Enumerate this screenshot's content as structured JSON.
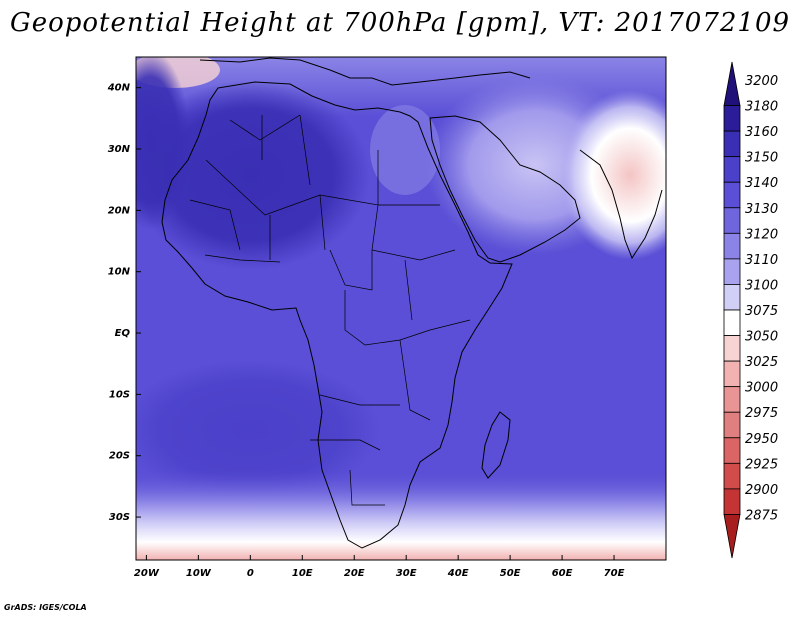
{
  "title": "Geopotential Height at 700hPa [gpm], VT: 2017072109",
  "credit": "GrADS: IGES/COLA",
  "map": {
    "region": "Africa, Arabian Peninsula and Southern Europe",
    "lon_range": [
      -22,
      80
    ],
    "lat_range": [
      -37,
      45
    ],
    "lat_ticks": [
      {
        "value": 40,
        "label": "40N"
      },
      {
        "value": 30,
        "label": "30N"
      },
      {
        "value": 20,
        "label": "20N"
      },
      {
        "value": 10,
        "label": "10N"
      },
      {
        "value": 0,
        "label": "EQ"
      },
      {
        "value": -10,
        "label": "10S"
      },
      {
        "value": -20,
        "label": "20S"
      },
      {
        "value": -30,
        "label": "30S"
      }
    ],
    "lon_ticks": [
      {
        "value": -20,
        "label": "20W"
      },
      {
        "value": -10,
        "label": "10W"
      },
      {
        "value": 0,
        "label": "0"
      },
      {
        "value": 10,
        "label": "10E"
      },
      {
        "value": 20,
        "label": "20E"
      },
      {
        "value": 30,
        "label": "30E"
      },
      {
        "value": 40,
        "label": "40E"
      },
      {
        "value": 50,
        "label": "50E"
      },
      {
        "value": 60,
        "label": "60E"
      },
      {
        "value": 70,
        "label": "70E"
      }
    ],
    "base_fill": "#5a4fd6",
    "regions": [
      {
        "name": "sahara-high",
        "value": 3170,
        "color": "#3a2fb4"
      },
      {
        "name": "south-atlantic",
        "value": 3150,
        "color": "#4b40c9"
      },
      {
        "name": "arabia-low",
        "value": 3110,
        "color": "#a9a2ee"
      },
      {
        "name": "india-low",
        "value": 3050,
        "color": "#f2c0c0"
      },
      {
        "name": "southern-ocean-low",
        "value": 2975,
        "color": "#e07f7f"
      }
    ]
  },
  "colorbar": {
    "levels": [
      {
        "label": "3200",
        "color": "#20107a"
      },
      {
        "label": "3180",
        "color": "#2b1d99"
      },
      {
        "label": "3160",
        "color": "#3a2fb4"
      },
      {
        "label": "3150",
        "color": "#4b40c9"
      },
      {
        "label": "3140",
        "color": "#5a4fd6"
      },
      {
        "label": "3130",
        "color": "#6f66dd"
      },
      {
        "label": "3120",
        "color": "#8b84e6"
      },
      {
        "label": "3110",
        "color": "#a9a2ee"
      },
      {
        "label": "3100",
        "color": "#d2cff7"
      },
      {
        "label": "3075",
        "color": "#ffffff"
      },
      {
        "label": "3050",
        "color": "#f7d3d3"
      },
      {
        "label": "3025",
        "color": "#f2b2b2"
      },
      {
        "label": "3000",
        "color": "#ea9595"
      },
      {
        "label": "2975",
        "color": "#e07f7f"
      },
      {
        "label": "2950",
        "color": "#db6464"
      },
      {
        "label": "2925",
        "color": "#d24c4c"
      },
      {
        "label": "2900",
        "color": "#c43434"
      },
      {
        "label": "2875",
        "color": "#a81e1e"
      }
    ]
  }
}
